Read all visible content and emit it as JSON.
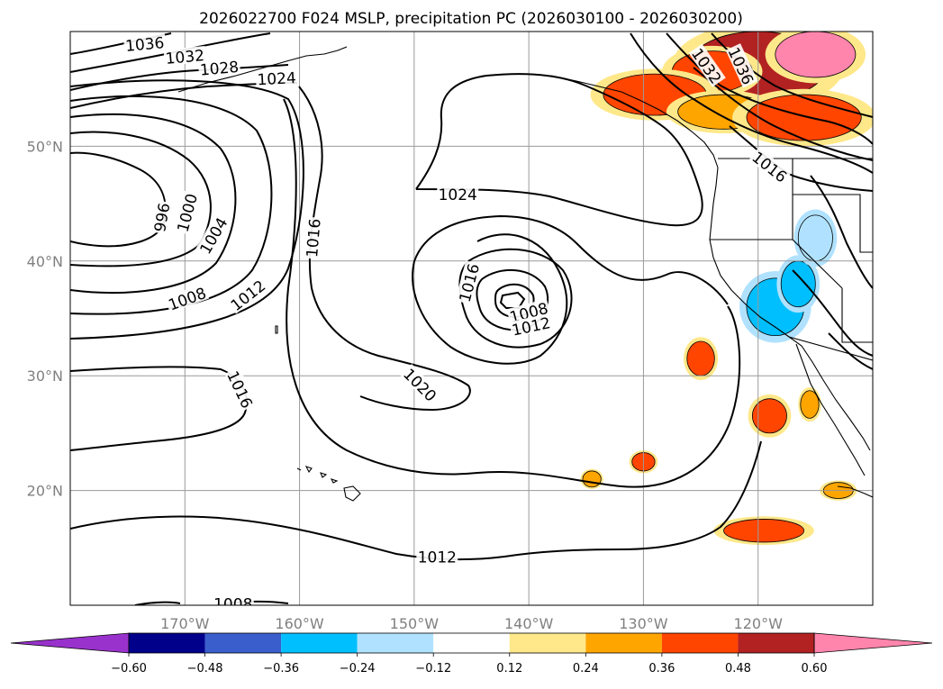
{
  "chart_data": {
    "type": "contour_map",
    "title": "2026022700 F024 MSLP, precipitation PC (2026030100 - 2026030200)",
    "lon_range": [
      -180,
      -110
    ],
    "lat_range": [
      10,
      60
    ],
    "x_ticks": [
      {
        "lon": -170,
        "label": "170°W"
      },
      {
        "lon": -160,
        "label": "160°W"
      },
      {
        "lon": -150,
        "label": "150°W"
      },
      {
        "lon": -140,
        "label": "140°W"
      },
      {
        "lon": -130,
        "label": "130°W"
      },
      {
        "lon": -120,
        "label": "120°W"
      }
    ],
    "y_ticks": [
      {
        "lat": 50,
        "label": "50°N"
      },
      {
        "lat": 40,
        "label": "40°N"
      },
      {
        "lat": 30,
        "label": "30°N"
      },
      {
        "lat": 20,
        "label": "20°N"
      }
    ],
    "grid": true,
    "contour_labels": [
      {
        "text": "1036",
        "lon": -173.5,
        "lat": 58.9,
        "angle": -5
      },
      {
        "text": "1032",
        "lon": -170.0,
        "lat": 57.8,
        "angle": -5
      },
      {
        "text": "1028",
        "lon": -167.0,
        "lat": 56.8,
        "angle": -5
      },
      {
        "text": "1024",
        "lon": -162.0,
        "lat": 55.9,
        "angle": -3
      },
      {
        "text": "996",
        "lon": -172.0,
        "lat": 43.8,
        "angle": -80
      },
      {
        "text": "1000",
        "lon": -169.8,
        "lat": 44.2,
        "angle": -75
      },
      {
        "text": "1004",
        "lon": -167.5,
        "lat": 42.2,
        "angle": -60
      },
      {
        "text": "1008",
        "lon": -169.8,
        "lat": 36.7,
        "angle": -20
      },
      {
        "text": "1012",
        "lon": -164.5,
        "lat": 37.0,
        "angle": -38
      },
      {
        "text": "1016",
        "lon": -158.8,
        "lat": 42.0,
        "angle": -85
      },
      {
        "text": "1016",
        "lon": -165.2,
        "lat": 28.8,
        "angle": 65
      },
      {
        "text": "1024",
        "lon": -146.2,
        "lat": 45.8,
        "angle": 0
      },
      {
        "text": "1016",
        "lon": -145.2,
        "lat": 38.1,
        "angle": -75
      },
      {
        "text": "1008",
        "lon": -140.0,
        "lat": 35.5,
        "angle": -15
      },
      {
        "text": "1012",
        "lon": -139.8,
        "lat": 34.3,
        "angle": -12
      },
      {
        "text": "1020",
        "lon": -149.5,
        "lat": 29.2,
        "angle": 45
      },
      {
        "text": "1012",
        "lon": -148.0,
        "lat": 14.2,
        "angle": 0
      },
      {
        "text": "1008",
        "lon": -165.8,
        "lat": 10.1,
        "angle": 0
      },
      {
        "text": "1032",
        "lon": -124.5,
        "lat": 57.0,
        "angle": 55
      },
      {
        "text": "1036",
        "lon": -121.5,
        "lat": 57.0,
        "angle": 65
      },
      {
        "text": "1016",
        "lon": -119.0,
        "lat": 48.2,
        "angle": 38
      }
    ],
    "colorbar": {
      "levels": [
        -0.6,
        -0.48,
        -0.36,
        -0.24,
        -0.12,
        0.12,
        0.24,
        0.36,
        0.48,
        0.6
      ],
      "tick_labels": [
        "−0.60",
        "−0.48",
        "−0.36",
        "−0.24",
        "−0.12",
        "0.12",
        "0.24",
        "0.36",
        "0.48",
        "0.60"
      ],
      "colors": [
        "#9932cc",
        "#00008b",
        "#3a5fcd",
        "#00bfff",
        "#b0e2ff",
        "#ffffff",
        "#ffe88a",
        "#ffa500",
        "#ff4500",
        "#b22222",
        "#ff85ad"
      ],
      "extend": "both"
    },
    "precip_areas": [
      {
        "lon": -120.0,
        "lat": 57.0,
        "rx": 6.0,
        "ry": 3.0,
        "level": 0.48
      },
      {
        "lon": -115.0,
        "lat": 58.0,
        "rx": 3.5,
        "ry": 2.0,
        "level": 0.6
      },
      {
        "lon": -124.0,
        "lat": 56.5,
        "rx": 3.5,
        "ry": 1.8,
        "level": 0.36
      },
      {
        "lon": -129.0,
        "lat": 54.5,
        "rx": 4.5,
        "ry": 1.8,
        "level": 0.36
      },
      {
        "lon": -123.0,
        "lat": 53.0,
        "rx": 4.0,
        "ry": 1.5,
        "level": 0.24
      },
      {
        "lon": -116.0,
        "lat": 52.5,
        "rx": 5.0,
        "ry": 2.0,
        "level": 0.36
      },
      {
        "lon": -118.5,
        "lat": 36.0,
        "rx": 2.5,
        "ry": 2.5,
        "level": -0.36
      },
      {
        "lon": -116.5,
        "lat": 38.0,
        "rx": 1.5,
        "ry": 2.0,
        "level": -0.36
      },
      {
        "lon": -115.0,
        "lat": 42.0,
        "rx": 1.5,
        "ry": 2.0,
        "level": -0.24
      },
      {
        "lon": -119.0,
        "lat": 26.5,
        "rx": 1.5,
        "ry": 1.5,
        "level": 0.36
      },
      {
        "lon": -119.5,
        "lat": 16.5,
        "rx": 3.5,
        "ry": 1.0,
        "level": 0.36
      },
      {
        "lon": -125.0,
        "lat": 31.5,
        "rx": 1.2,
        "ry": 1.5,
        "level": 0.36
      },
      {
        "lon": -115.5,
        "lat": 27.5,
        "rx": 0.8,
        "ry": 1.2,
        "level": 0.24
      },
      {
        "lon": -130.0,
        "lat": 22.5,
        "rx": 1.0,
        "ry": 0.8,
        "level": 0.36
      },
      {
        "lon": -134.5,
        "lat": 21.0,
        "rx": 0.8,
        "ry": 0.7,
        "level": 0.24
      },
      {
        "lon": -113.0,
        "lat": 20.0,
        "rx": 1.3,
        "ry": 0.7,
        "level": 0.24
      }
    ]
  }
}
